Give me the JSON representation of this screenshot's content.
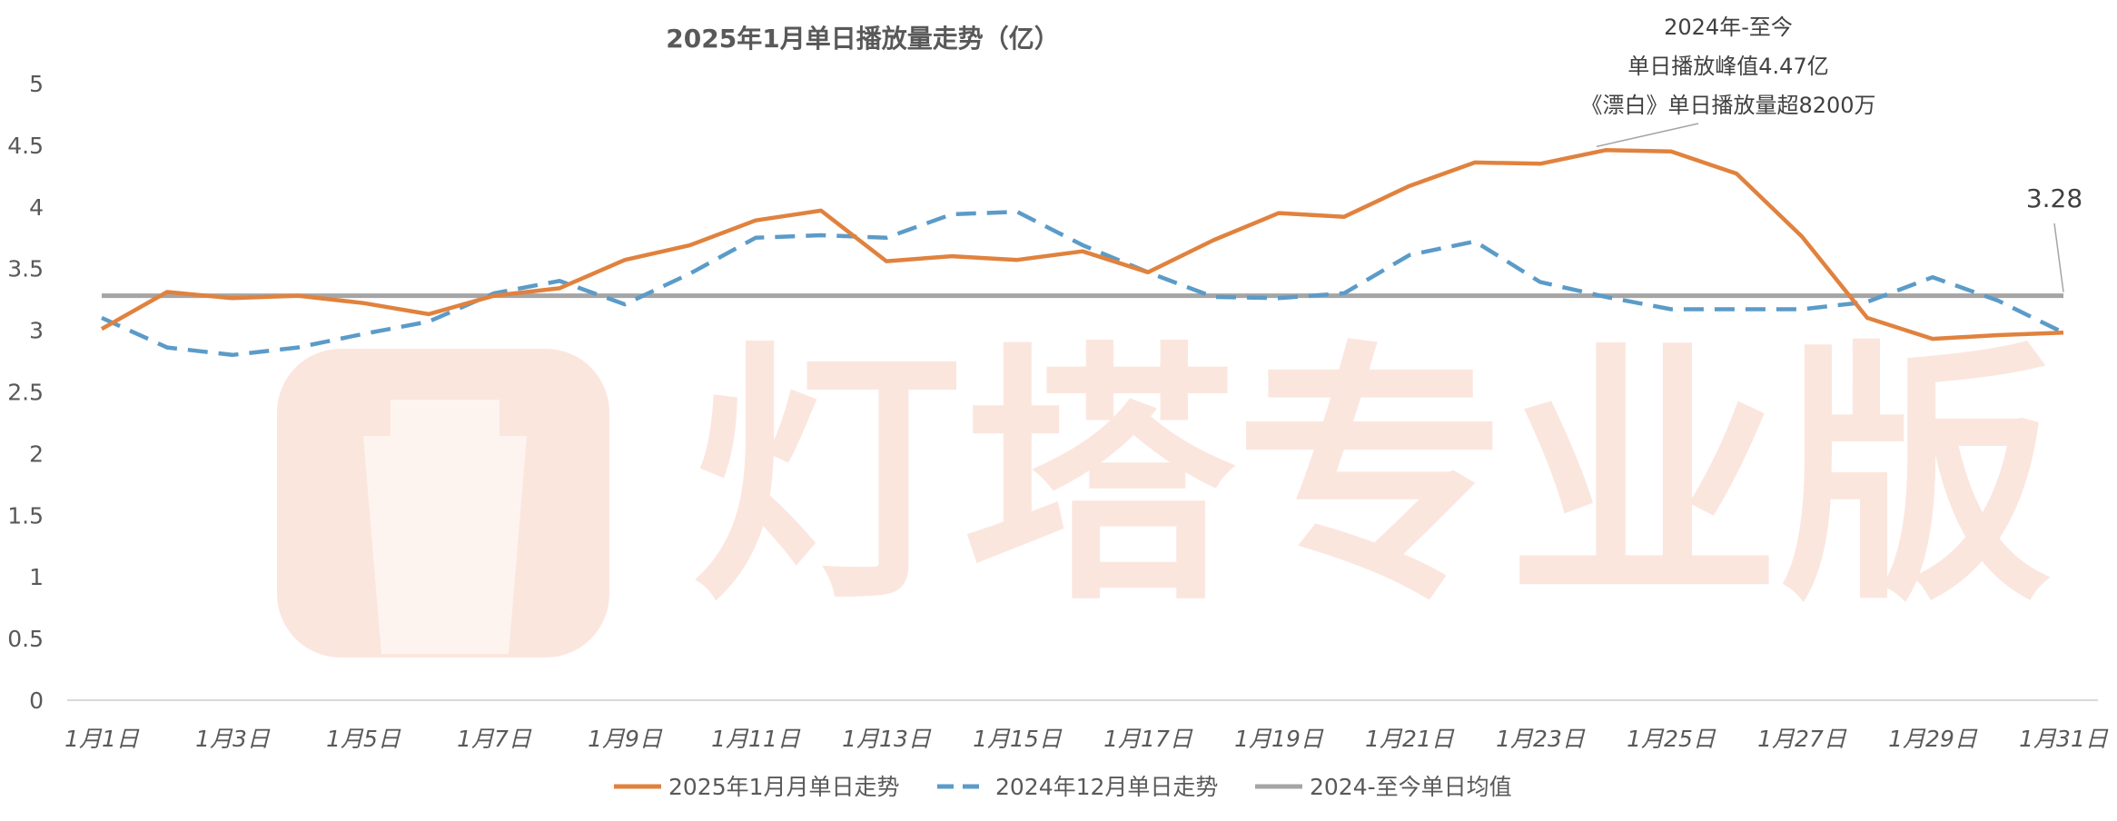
{
  "watermark": {
    "text": "灯塔专业版"
  },
  "chart_data": {
    "type": "line",
    "title": "2025年1月单日播放量走势（亿）",
    "categories": [
      "1月1日",
      "1月2日",
      "1月3日",
      "1月4日",
      "1月5日",
      "1月6日",
      "1月7日",
      "1月8日",
      "1月9日",
      "1月10日",
      "1月11日",
      "1月12日",
      "1月13日",
      "1月14日",
      "1月15日",
      "1月16日",
      "1月17日",
      "1月18日",
      "1月19日",
      "1月20日",
      "1月21日",
      "1月22日",
      "1月23日",
      "1月24日",
      "1月25日",
      "1月26日",
      "1月27日",
      "1月28日",
      "1月29日",
      "1月30日",
      "1月31日"
    ],
    "x_tick_labels": [
      "1月1日",
      "1月3日",
      "1月5日",
      "1月7日",
      "1月9日",
      "1月11日",
      "1月13日",
      "1月15日",
      "1月17日",
      "1月19日",
      "1月21日",
      "1月23日",
      "1月25日",
      "1月27日",
      "1月29日",
      "1月31日"
    ],
    "ylim": [
      0,
      5
    ],
    "y_ticks": [
      "0",
      "0.5",
      "1",
      "1.5",
      "2",
      "2.5",
      "3",
      "3.5",
      "4",
      "4.5",
      "5"
    ],
    "series": [
      {
        "name": "2025年1月月单日走势",
        "color": "#e0823e",
        "style": "solid",
        "values": [
          3.01,
          3.31,
          3.26,
          3.28,
          3.22,
          3.13,
          3.28,
          3.34,
          3.57,
          3.69,
          3.89,
          3.97,
          3.56,
          3.6,
          3.57,
          3.64,
          3.47,
          3.73,
          3.95,
          3.92,
          4.17,
          4.36,
          4.35,
          4.46,
          4.45,
          4.27,
          3.76,
          3.1,
          2.93,
          2.96,
          2.98
        ]
      },
      {
        "name": "2024年12月单日走势",
        "color": "#5b9bc8",
        "style": "dashed",
        "values": [
          3.1,
          2.86,
          2.8,
          2.86,
          2.97,
          3.07,
          3.3,
          3.4,
          3.21,
          3.46,
          3.75,
          3.77,
          3.75,
          3.94,
          3.96,
          3.69,
          3.47,
          3.27,
          3.26,
          3.3,
          3.61,
          3.72,
          3.39,
          3.27,
          3.17,
          3.17,
          3.17,
          3.23,
          3.43,
          3.24,
          2.98
        ]
      },
      {
        "name": "2024-至今单日均值",
        "color": "#a5a5a5",
        "style": "solid",
        "values": [
          3.28,
          3.28,
          3.28,
          3.28,
          3.28,
          3.28,
          3.28,
          3.28,
          3.28,
          3.28,
          3.28,
          3.28,
          3.28,
          3.28,
          3.28,
          3.28,
          3.28,
          3.28,
          3.28,
          3.28,
          3.28,
          3.28,
          3.28,
          3.28,
          3.28,
          3.28,
          3.28,
          3.28,
          3.28,
          3.28,
          3.28
        ]
      }
    ],
    "annotations": [
      {
        "lines": [
          "2024年-至今",
          "单日播放峰值4.47亿",
          "《漂白》单日播放量超8200万"
        ],
        "target_index": 23,
        "target_value": 4.46
      },
      {
        "text": "3.28",
        "target_index": 30,
        "target_value": 3.28
      }
    ],
    "legend": "bottom",
    "grid": false
  }
}
